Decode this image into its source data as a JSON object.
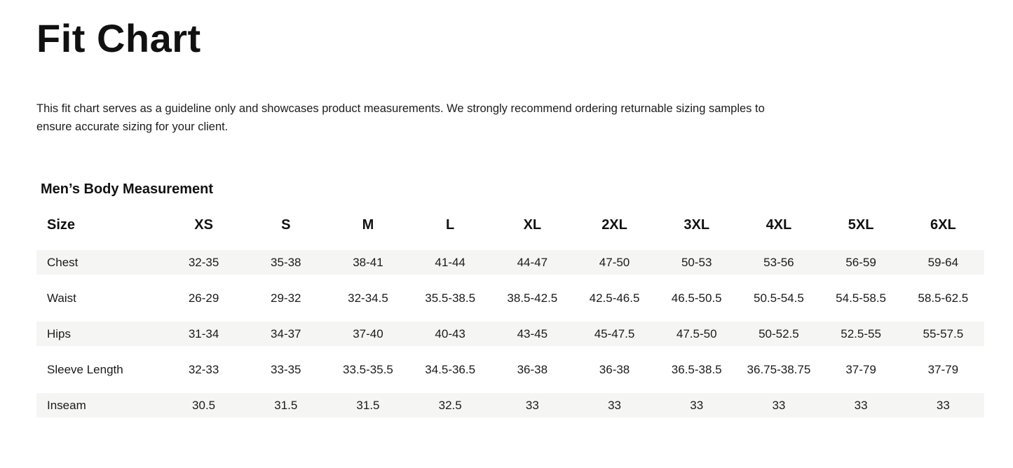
{
  "page": {
    "title": "Fit Chart",
    "description": "This fit chart serves as a guideline only and showcases product measurements. We strongly recommend ordering returnable sizing samples to ensure accurate sizing for your client.",
    "section_title": "Men’s Body Measurement"
  },
  "chart_data": {
    "type": "table",
    "title": "Men’s Body Measurement",
    "columns": [
      "Size",
      "XS",
      "S",
      "M",
      "L",
      "XL",
      "2XL",
      "3XL",
      "4XL",
      "5XL",
      "6XL"
    ],
    "rows": [
      {
        "label": "Chest",
        "values": [
          "32-35",
          "35-38",
          "38-41",
          "41-44",
          "44-47",
          "47-50",
          "50-53",
          "53-56",
          "56-59",
          "59-64"
        ]
      },
      {
        "label": "Waist",
        "values": [
          "26-29",
          "29-32",
          "32-34.5",
          "35.5-38.5",
          "38.5-42.5",
          "42.5-46.5",
          "46.5-50.5",
          "50.5-54.5",
          "54.5-58.5",
          "58.5-62.5"
        ]
      },
      {
        "label": "Hips",
        "values": [
          "31-34",
          "34-37",
          "37-40",
          "40-43",
          "43-45",
          "45-47.5",
          "47.5-50",
          "50-52.5",
          "52.5-55",
          "55-57.5"
        ]
      },
      {
        "label": "Sleeve Length",
        "values": [
          "32-33",
          "33-35",
          "33.5-35.5",
          "34.5-36.5",
          "36-38",
          "36-38",
          "36.5-38.5",
          "36.75-38.75",
          "37-79",
          "37-79"
        ]
      },
      {
        "label": "Inseam",
        "values": [
          "30.5",
          "31.5",
          "31.5",
          "32.5",
          "33",
          "33",
          "33",
          "33",
          "33",
          "33"
        ]
      }
    ],
    "layout": {
      "striped_rows": "odd",
      "stripe_color": "#f5f5f3",
      "first_column_align": "left",
      "value_align": "center"
    }
  },
  "colors": {
    "background": "#ffffff",
    "text": "#1a1a1a",
    "stripe": "#f5f5f3"
  }
}
